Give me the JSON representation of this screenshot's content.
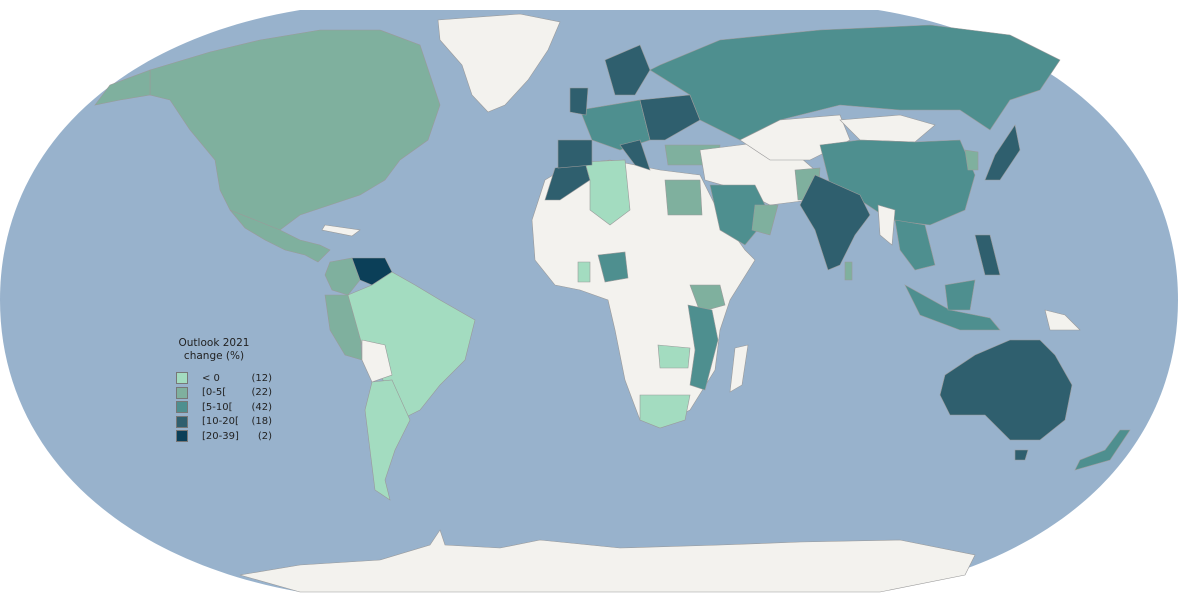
{
  "map": {
    "ocean_color": "#98b2cc",
    "no_data_color": "#f3f2ee"
  },
  "legend": {
    "title_line1": "Outlook 2021",
    "title_line2": "change (%)",
    "items": [
      {
        "label": "< 0",
        "count": "(12)",
        "color": "#a3dcc0"
      },
      {
        "label": "[0-5[",
        "count": "(22)",
        "color": "#7fb09e"
      },
      {
        "label": "[5-10[",
        "count": "(42)",
        "color": "#4e8f8f"
      },
      {
        "label": "[10-20[",
        "count": "(18)",
        "color": "#2f5f6e"
      },
      {
        "label": "[20-39]",
        "count": "(2)",
        "color": "#0b3f58"
      }
    ]
  }
}
